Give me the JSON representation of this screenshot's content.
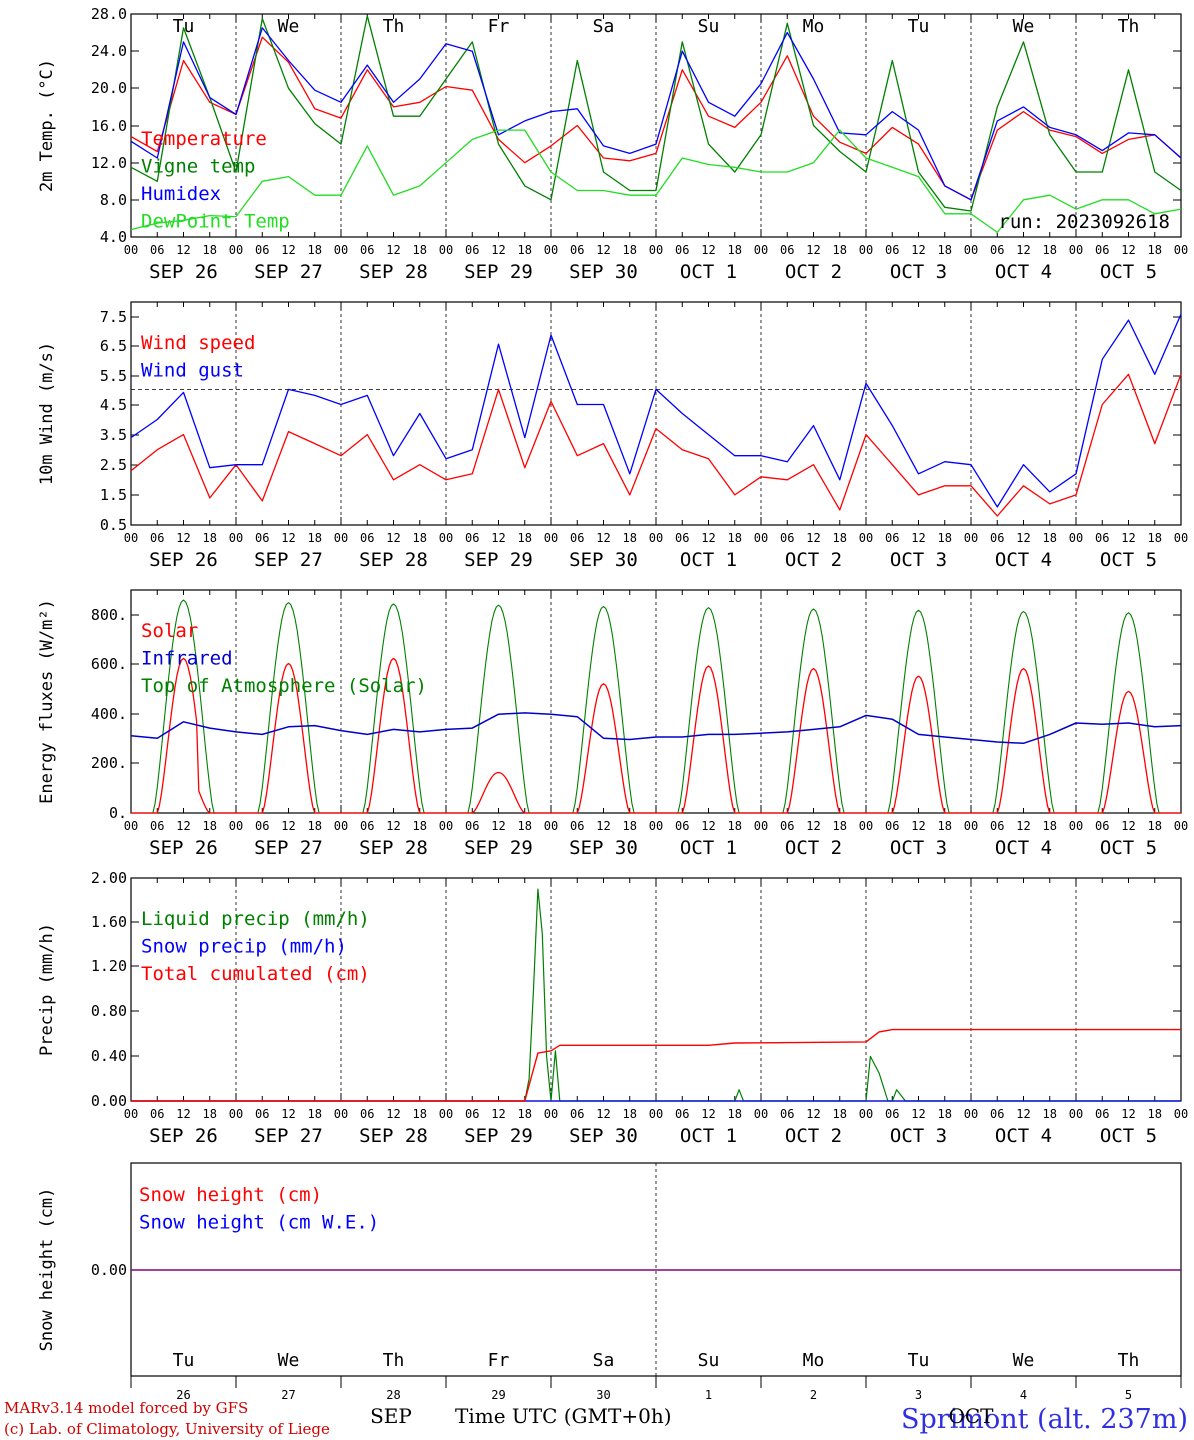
{
  "chart_data": [
    {
      "id": "temp",
      "type": "line",
      "ylabel": "2m Temp. (°C)",
      "ylim": [
        4,
        28
      ],
      "yticks": [
        "4.0",
        "8.0",
        "12.0",
        "16.0",
        "20.0",
        "24.0",
        "28.0"
      ],
      "legend": [
        {
          "name": "Temperature",
          "color": "#ff0000"
        },
        {
          "name": "Vigne temp",
          "color": "#008000"
        },
        {
          "name": "Humidex",
          "color": "#0000ff"
        },
        {
          "name": "DewPoint Temp",
          "color": "#22dd22"
        }
      ],
      "annotation": "run: 2023092618",
      "days_top": [
        "Tu",
        "We",
        "Th",
        "Fr",
        "Sa",
        "Su",
        "Mo",
        "Tu",
        "We",
        "Th"
      ],
      "x_hours": [
        0,
        6,
        12,
        18,
        24,
        30,
        36,
        42,
        48,
        54,
        60,
        66,
        72,
        78,
        84,
        90,
        96,
        102,
        108,
        114,
        120,
        126,
        132,
        138,
        144,
        150,
        156,
        162,
        168,
        174,
        180,
        186,
        192,
        198,
        204,
        210,
        216,
        222,
        228,
        234,
        240
      ],
      "series": [
        {
          "name": "Temperature",
          "color": "#ff0000",
          "values": [
            14.8,
            13.2,
            23.0,
            18.5,
            17.2,
            25.5,
            22.8,
            17.8,
            16.8,
            22.0,
            18.0,
            18.5,
            20.2,
            19.8,
            14.5,
            12.0,
            13.8,
            16.0,
            12.5,
            12.2,
            13.0,
            22.0,
            17.0,
            15.8,
            18.5,
            23.5,
            17.0,
            14.2,
            13.0,
            15.8,
            14.0,
            9.5,
            8.0,
            15.5,
            17.5,
            15.5,
            14.8,
            13.0,
            14.5,
            15.0,
            12.5
          ]
        },
        {
          "name": "Vigne temp",
          "color": "#008000",
          "values": [
            11.5,
            10.0,
            26.5,
            19.0,
            11.0,
            27.5,
            20.0,
            16.2,
            14.0,
            27.8,
            17.0,
            17.0,
            21.0,
            25.0,
            14.0,
            9.5,
            8.0,
            23.0,
            11.0,
            9.0,
            9.0,
            25.0,
            14.0,
            11.0,
            15.0,
            27.0,
            16.0,
            13.2,
            11.0,
            23.0,
            11.0,
            7.2,
            6.8,
            18.0,
            25.0,
            15.0,
            11.0,
            11.0,
            22.0,
            11.0,
            9.0
          ]
        },
        {
          "name": "Humidex",
          "color": "#0000ff",
          "values": [
            14.3,
            12.5,
            25.0,
            19.0,
            17.2,
            26.5,
            23.0,
            19.8,
            18.5,
            22.5,
            18.5,
            21.0,
            24.8,
            24.0,
            15.0,
            16.5,
            17.5,
            17.8,
            13.8,
            13.0,
            14.0,
            24.0,
            18.5,
            17.0,
            20.5,
            26.0,
            21.0,
            15.2,
            15.0,
            17.5,
            15.5,
            9.5,
            8.0,
            16.5,
            18.0,
            15.8,
            15.0,
            13.3,
            15.2,
            15.0,
            12.5
          ]
        },
        {
          "name": "DewPoint Temp",
          "color": "#22dd22",
          "values": [
            4.8,
            5.5,
            5.8,
            6.3,
            6.2,
            10.0,
            10.5,
            8.5,
            8.5,
            13.8,
            8.5,
            9.5,
            12.0,
            14.5,
            15.5,
            15.5,
            11.0,
            9.0,
            9.0,
            8.5,
            8.5,
            12.5,
            11.8,
            11.5,
            11.0,
            11.0,
            12.0,
            15.5,
            12.5,
            11.5,
            10.5,
            6.5,
            6.5,
            4.5,
            8.0,
            8.5,
            7.0,
            8.0,
            8.0,
            6.5,
            7.0
          ]
        }
      ]
    },
    {
      "id": "wind",
      "type": "line",
      "ylabel": "10m Wind (m/s)",
      "ylim": [
        0.5,
        7.9
      ],
      "yticks": [
        "0.5",
        "1.5",
        "2.5",
        "3.5",
        "4.5",
        "5.5",
        "6.5",
        "7.5"
      ],
      "ref_line": 5.0,
      "legend": [
        {
          "name": "Wind speed",
          "color": "#ff0000"
        },
        {
          "name": "Wind gust",
          "color": "#0000ff"
        }
      ],
      "x_hours": [
        0,
        6,
        12,
        18,
        24,
        30,
        36,
        42,
        48,
        54,
        60,
        66,
        72,
        78,
        84,
        90,
        96,
        102,
        108,
        114,
        120,
        126,
        132,
        138,
        144,
        150,
        156,
        162,
        168,
        174,
        180,
        186,
        192,
        198,
        204,
        210,
        216,
        222,
        228,
        234,
        240
      ],
      "series": [
        {
          "name": "Wind speed",
          "color": "#ff0000",
          "values": [
            2.3,
            3.0,
            3.5,
            1.4,
            2.5,
            1.3,
            3.6,
            3.2,
            2.8,
            3.5,
            2.0,
            2.5,
            2.0,
            2.2,
            5.0,
            2.4,
            4.6,
            2.8,
            3.2,
            1.5,
            3.7,
            3.0,
            2.7,
            1.5,
            2.1,
            2.0,
            2.5,
            1.0,
            3.5,
            2.5,
            1.5,
            1.8,
            1.8,
            0.8,
            1.8,
            1.2,
            1.5,
            4.5,
            5.5,
            3.2,
            5.5
          ]
        },
        {
          "name": "Wind gust",
          "color": "#0000ff",
          "values": [
            3.4,
            4.0,
            4.9,
            2.4,
            2.5,
            2.5,
            5.0,
            4.8,
            4.5,
            4.8,
            2.8,
            4.2,
            2.7,
            3.0,
            6.5,
            3.4,
            6.8,
            4.5,
            4.5,
            2.2,
            5.0,
            4.2,
            3.5,
            2.8,
            2.8,
            2.6,
            3.8,
            2.0,
            5.2,
            3.8,
            2.2,
            2.6,
            2.5,
            1.1,
            2.5,
            1.6,
            2.2,
            6.0,
            7.3,
            5.5,
            7.5
          ]
        }
      ]
    },
    {
      "id": "energy",
      "type": "line",
      "ylabel": "Energy fluxes (W/m²)",
      "ylim": [
        0,
        880
      ],
      "yticks": [
        "0.",
        "200.",
        "400.",
        "600.",
        "800."
      ],
      "legend": [
        {
          "name": "Solar",
          "color": "#ff0000"
        },
        {
          "name": "Infrared",
          "color": "#0000cc"
        },
        {
          "name": "Top of Atmosphere (Solar)",
          "color": "#008000"
        }
      ],
      "solar_days": [
        {
          "toa": 840,
          "solar": 610,
          "cut_after": 15
        },
        {
          "toa": 830,
          "solar": 590
        },
        {
          "toa": 825,
          "solar": 610
        },
        {
          "toa": 820,
          "solar": 160
        },
        {
          "toa": 815,
          "solar": 510
        },
        {
          "toa": 810,
          "solar": 580
        },
        {
          "toa": 805,
          "solar": 570
        },
        {
          "toa": 800,
          "solar": 540
        },
        {
          "toa": 795,
          "solar": 570
        },
        {
          "toa": 790,
          "solar": 480
        }
      ],
      "x_hours": [
        0,
        6,
        12,
        18,
        24,
        30,
        36,
        42,
        48,
        54,
        60,
        66,
        72,
        78,
        84,
        90,
        96,
        102,
        108,
        114,
        120,
        126,
        132,
        138,
        144,
        150,
        156,
        162,
        168,
        174,
        180,
        186,
        192,
        198,
        204,
        210,
        216,
        222,
        228,
        234,
        240
      ],
      "infrared": [
        305,
        295,
        360,
        335,
        320,
        310,
        340,
        345,
        325,
        310,
        330,
        320,
        330,
        335,
        390,
        395,
        390,
        380,
        295,
        290,
        300,
        300,
        310,
        310,
        315,
        320,
        330,
        340,
        385,
        370,
        310,
        300,
        290,
        280,
        275,
        310,
        355,
        350,
        355,
        340,
        345
      ]
    },
    {
      "id": "precip",
      "type": "line",
      "ylabel": "Precip (mm/h)",
      "ylim": [
        0,
        2.0
      ],
      "yticks": [
        "0.00",
        "0.40",
        "0.80",
        "1.20",
        "1.60",
        "2.00"
      ],
      "legend": [
        {
          "name": "Liquid precip (mm/h)",
          "color": "#008000"
        },
        {
          "name": "Snow precip (mm/h)",
          "color": "#0000ff"
        },
        {
          "name": "Total cumulated (cm)",
          "color": "#ff0000"
        }
      ],
      "liquid": [
        [
          0,
          0
        ],
        [
          90,
          0
        ],
        [
          91,
          0.2
        ],
        [
          92,
          1.0
        ],
        [
          93,
          1.9
        ],
        [
          94,
          1.5
        ],
        [
          95,
          0.4
        ],
        [
          96,
          0
        ],
        [
          97,
          0.45
        ],
        [
          98,
          0
        ],
        [
          138,
          0
        ],
        [
          139,
          0.1
        ],
        [
          140,
          0
        ],
        [
          168,
          0
        ],
        [
          169,
          0.4
        ],
        [
          171,
          0.25
        ],
        [
          173,
          0
        ],
        [
          174,
          0
        ],
        [
          175,
          0.1
        ],
        [
          177,
          0
        ],
        [
          240,
          0
        ]
      ],
      "cumulated": [
        [
          0,
          0
        ],
        [
          90,
          0
        ],
        [
          93,
          0.43
        ],
        [
          96,
          0.45
        ],
        [
          98,
          0.5
        ],
        [
          132,
          0.5
        ],
        [
          138,
          0.52
        ],
        [
          168,
          0.53
        ],
        [
          171,
          0.62
        ],
        [
          174,
          0.64
        ],
        [
          240,
          0.64
        ]
      ]
    },
    {
      "id": "snow",
      "type": "line",
      "ylabel": "Snow height (cm)",
      "yticks": [
        "0.00"
      ],
      "legend": [
        {
          "name": "Snow height (cm)",
          "color": "#ff0000"
        },
        {
          "name": "Snow height (cm W.E.)",
          "color": "#0000ff"
        }
      ],
      "values": [
        0,
        0
      ]
    }
  ],
  "x_axis": {
    "hour_labels": [
      "00",
      "06",
      "12",
      "18"
    ],
    "dates": [
      "SEP 26",
      "SEP 27",
      "SEP 28",
      "SEP 29",
      "SEP 30",
      "OCT  1",
      "OCT  2",
      "OCT  3",
      "OCT  4",
      "OCT  5"
    ],
    "days_bottom": [
      "Tu",
      "We",
      "Th",
      "Fr",
      "Sa",
      "Su",
      "Mo",
      "Tu",
      "We",
      "Th"
    ],
    "day_numbers": [
      "26",
      "27",
      "28",
      "29",
      "30",
      "1",
      "2",
      "3",
      "4",
      "5"
    ],
    "month_labels": [
      "SEP",
      "OCT"
    ],
    "weekend_days": [
      "Sa",
      "Su"
    ]
  },
  "footer": {
    "credit_line1": "MARv3.14 model forced by GFS",
    "credit_line2": "(c) Lab. of Climatology, University of Liege",
    "xlabel": "Time UTC (GMT+0h)",
    "site": "Sprimont (alt. 237m)"
  }
}
